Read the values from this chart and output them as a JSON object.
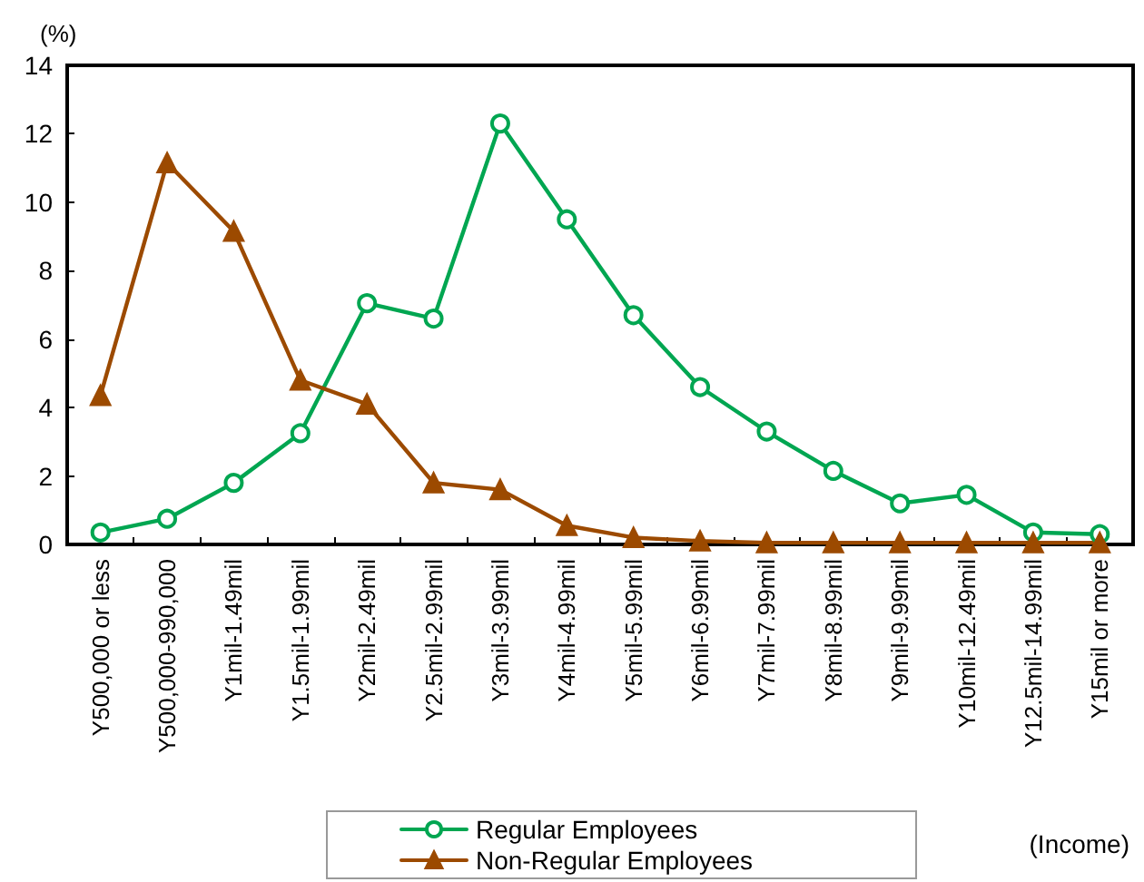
{
  "chart_data": {
    "type": "line",
    "categories": [
      "Y500,000 or less",
      "Y500,000-990,000",
      "Y1mil-1.49mil",
      "Y1.5mil-1.99mil",
      "Y2mil-2.49mil",
      "Y2.5mil-2.99mil",
      "Y3mil-3.99mil",
      "Y4mil-4.99mil",
      "Y5mil-5.99mil",
      "Y6mil-6.99mil",
      "Y7mil-7.99mil",
      "Y8mil-8.99mil",
      "Y9mil-9.99mil",
      "Y10mil-12.49mil",
      "Y12.5mil-14.99mil",
      "Y15mil or more"
    ],
    "series": [
      {
        "name": "Regular Employees",
        "color": "#00a651",
        "marker": "circle",
        "values": [
          0.35,
          0.75,
          1.8,
          3.25,
          7.05,
          6.6,
          12.3,
          9.5,
          6.7,
          4.6,
          3.3,
          2.15,
          1.2,
          1.45,
          0.35,
          0.3
        ]
      },
      {
        "name": "Non-Regular Employees",
        "color": "#9c4a00",
        "marker": "triangle",
        "values": [
          4.35,
          11.15,
          9.15,
          4.8,
          4.1,
          1.8,
          1.6,
          0.55,
          0.2,
          0.1,
          0.05,
          0.05,
          0.05,
          0.05,
          0.05,
          0.05
        ]
      }
    ],
    "ylabel": "(%)",
    "xlabel": "(Income)",
    "ylim": [
      0,
      14
    ],
    "yticks": [
      0,
      2,
      4,
      6,
      8,
      10,
      12,
      14
    ],
    "grid": false,
    "legend": "bottom",
    "line_style": "solid"
  }
}
